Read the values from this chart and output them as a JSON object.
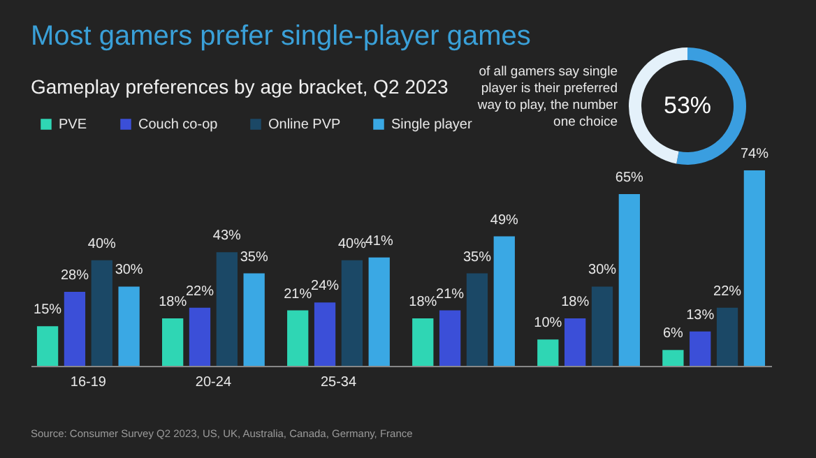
{
  "chart_data": [
    {
      "type": "bar",
      "title": "Most gamers prefer single-player games",
      "subtitle": "Gameplay preferences by age bracket, Q2 2023",
      "categories": [
        "16-19",
        "20-24",
        "25-34",
        null,
        null,
        null
      ],
      "series": [
        {
          "name": "PVE",
          "color": "#2fd6b4",
          "values": [
            15,
            18,
            21,
            18,
            10,
            6
          ],
          "value_labels": [
            "15%",
            "18%",
            "21%",
            "18%",
            "10%",
            "6%"
          ]
        },
        {
          "name": "Couch co-op",
          "color": "#3b4fd8",
          "values": [
            28,
            22,
            24,
            21,
            18,
            13
          ],
          "value_labels": [
            "28%",
            "22%",
            "24%",
            "21%",
            "18%",
            "13%"
          ]
        },
        {
          "name": "Online PVP",
          "color": "#1b4866",
          "values": [
            40,
            43,
            40,
            35,
            30,
            22
          ],
          "value_labels": [
            "40%",
            "43%",
            "40%",
            "35%",
            "30%",
            "22%"
          ]
        },
        {
          "name": "Single player",
          "color": "#3aa8e4",
          "values": [
            30,
            35,
            41,
            49,
            65,
            74
          ],
          "value_labels": [
            "30%",
            "35%",
            "41%",
            "49%",
            "65%",
            "74%"
          ]
        }
      ],
      "tick_labels": "x",
      "legend": "top left",
      "annotations": [
        "Source: Consumer Survey Q2 2023, US, UK, Australia, Canada, Germany, France"
      ]
    },
    {
      "type": "donut",
      "categories": [
        null,
        null
      ],
      "values": [
        53,
        47
      ],
      "colors": [
        "#3a9ee0",
        "#e4f1fa"
      ],
      "value_labels": [
        "53%",
        null
      ],
      "annotations": [
        "of all gamers say single player is their preferred way to play, the number one choice"
      ]
    }
  ]
}
